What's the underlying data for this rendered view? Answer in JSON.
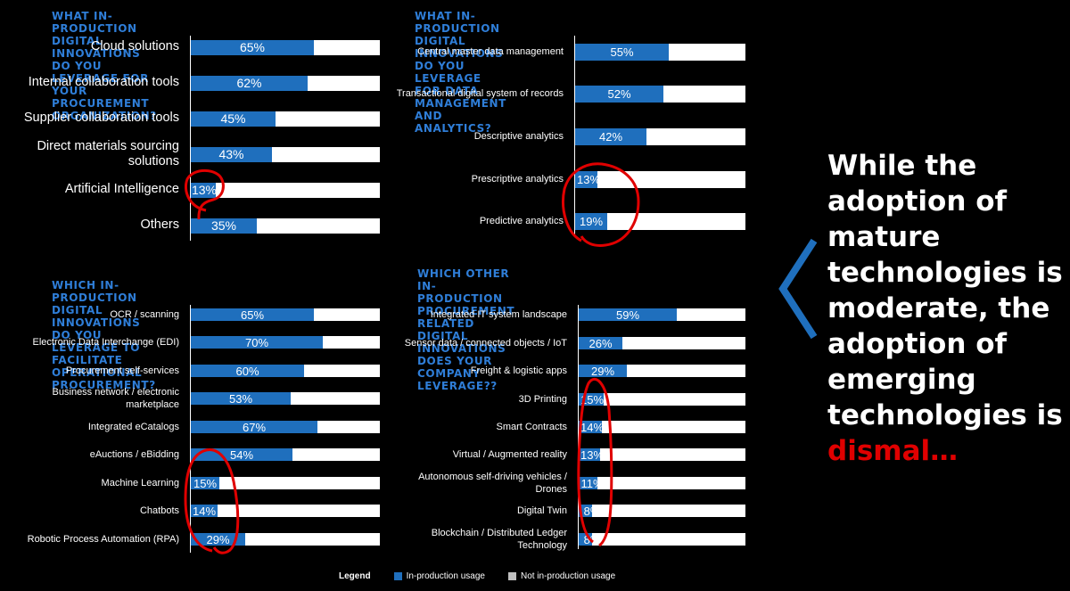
{
  "chart_data": [
    {
      "type": "bar",
      "title": "WHAT IN-PRODUCTION DIGITAL INNOVATIONS DO YOU\nLEVERAGE FOR YOUR PROCUREMENT ORGANIZATION?",
      "categories": [
        "Cloud solutions",
        "Internal collaboration tools",
        "Supplier collaboration tools",
        "Direct materials sourcing solutions",
        "Artificial Intelligence",
        "Others"
      ],
      "values": [
        65,
        62,
        45,
        43,
        13,
        35
      ],
      "value_labels": [
        "65%",
        "62%",
        "45%",
        "43%",
        "13%",
        "35%"
      ],
      "xlim": [
        0,
        100
      ]
    },
    {
      "type": "bar",
      "title": "WHAT IN-PRODUCTION DIGITAL INNOVATIONS DO YOU\nLEVERAGE FOR DATA MANAGEMENT AND ANALYTICS?",
      "categories": [
        "Central master data management",
        "Transactional digital system of records",
        "Descriptive analytics",
        "Prescriptive analytics",
        "Predictive analytics"
      ],
      "values": [
        55,
        52,
        42,
        13,
        19
      ],
      "value_labels": [
        "55%",
        "52%",
        "42%",
        "13%",
        "19%"
      ],
      "xlim": [
        0,
        100
      ]
    },
    {
      "type": "bar",
      "title": "WHICH IN-PRODUCTION DIGITAL INNOVATIONS DO YOU\nLEVERAGE TO FACILITATE OPERATIONAL PROCUREMENT?",
      "categories": [
        "OCR / scanning",
        "Electronic Data Interchange (EDI)",
        "Procurement self-services",
        "Business network / electronic marketplace",
        "Integrated eCatalogs",
        "eAuctions / eBidding",
        "Machine Learning",
        "Chatbots",
        "Robotic Process Automation (RPA)"
      ],
      "values": [
        65,
        70,
        60,
        53,
        67,
        54,
        15,
        14,
        29
      ],
      "value_labels": [
        "65%",
        "70%",
        "60%",
        "53%",
        "67%",
        "54%",
        "15%",
        "14%",
        "29%"
      ],
      "xlim": [
        0,
        100
      ]
    },
    {
      "type": "bar",
      "title": "WHICH OTHER IN-PRODUCTION PROCUREMENT RELATED\nDIGITAL INNOVATIONS DOES YOUR COMPANY\nLEVERAGE??",
      "categories": [
        "Integrated IT system landscape",
        "Sensor data / connected objects / IoT",
        "Freight & logistic apps",
        "3D Printing",
        "Smart Contracts",
        "Virtual / Augmented reality",
        "Autonomous self-driving vehicles / Drones",
        "Digital Twin",
        "Blockchain / Distributed Ledger Technology"
      ],
      "values": [
        59,
        26,
        29,
        15,
        14,
        13,
        11,
        8,
        8
      ],
      "value_labels": [
        "59%",
        "26%",
        "29%",
        "15%",
        "14%",
        "13%",
        "11%",
        "8%",
        "8%"
      ],
      "xlim": [
        0,
        100
      ]
    }
  ],
  "callout": {
    "text": "While the adoption of mature technologies is moderate, the adoption of emerging technologies is",
    "highlight": "dismal…",
    "highlight_color": "#e00000"
  },
  "legend": {
    "title": "Legend",
    "items": [
      {
        "label": "In-production usage",
        "color": "#1f6fbd"
      },
      {
        "label": "Not in-production usage",
        "color": "#bfbfbf"
      }
    ]
  },
  "colors": {
    "bar_fill": "#1f6fbd",
    "bar_track": "#ffffff",
    "title": "#2f7ed8",
    "annotation": "#e00000",
    "chevron": "#1f6fbd"
  }
}
